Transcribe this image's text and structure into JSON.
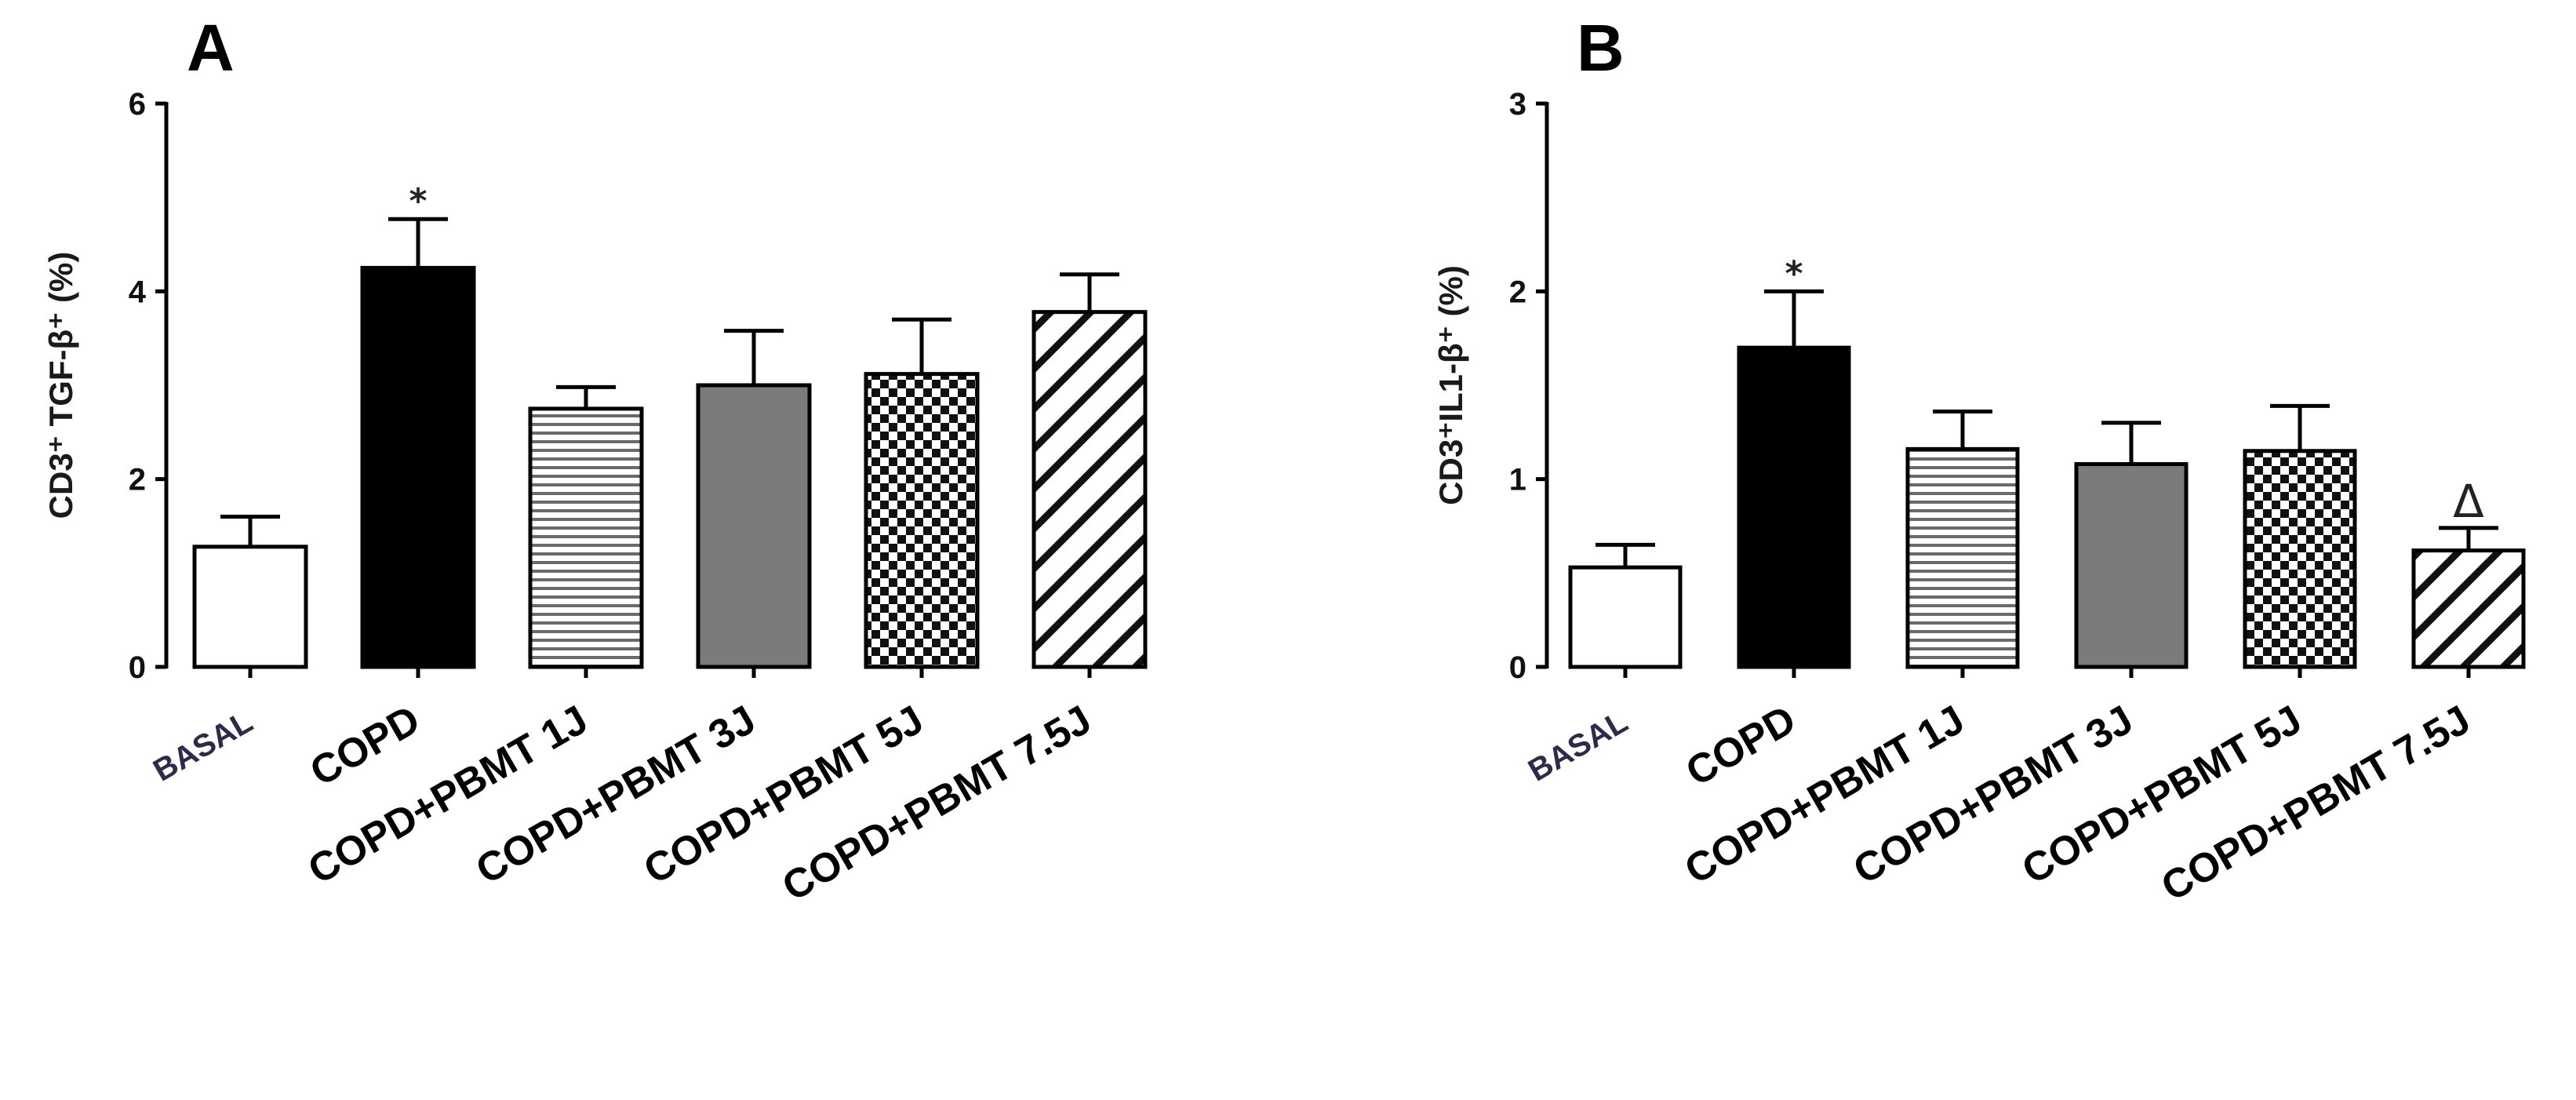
{
  "chart_data": [
    {
      "panel": "A",
      "type": "bar",
      "ylabel": "CD3⁺ TGF-β⁺ (%)",
      "ylim": [
        0,
        6
      ],
      "yticks": [
        "0",
        "2",
        "4",
        "6"
      ],
      "categories": [
        "BASAL",
        "COPD",
        "COPD+PBMT 1J",
        "COPD+PBMT 3J",
        "COPD+PBMT 5J",
        "COPD+PBMT 7.5J"
      ],
      "values": [
        1.28,
        4.25,
        2.75,
        3.0,
        3.12,
        3.78
      ],
      "errors": [
        0.32,
        0.52,
        0.23,
        0.58,
        0.58,
        0.4
      ],
      "patterns": [
        "white",
        "black",
        "horizontal-lines",
        "gray",
        "checker",
        "diagonal-lines"
      ],
      "annotations": [
        "",
        "*",
        "",
        "",
        "",
        ""
      ]
    },
    {
      "panel": "B",
      "type": "bar",
      "ylabel": "CD3⁺IL1-β⁺ (%)",
      "ylim": [
        0,
        3
      ],
      "yticks": [
        "0",
        "1",
        "2",
        "3"
      ],
      "categories": [
        "BASAL",
        "COPD",
        "COPD+PBMT 1J",
        "COPD+PBMT 3J",
        "COPD+PBMT 5J",
        "COPD+PBMT 7.5J"
      ],
      "values": [
        0.53,
        1.7,
        1.16,
        1.08,
        1.15,
        0.62
      ],
      "errors": [
        0.12,
        0.3,
        0.2,
        0.22,
        0.24,
        0.12
      ],
      "patterns": [
        "white",
        "black",
        "horizontal-lines",
        "gray",
        "checker",
        "diagonal-lines"
      ],
      "annotations": [
        "",
        "*",
        "",
        "",
        "",
        "Δ"
      ]
    }
  ]
}
